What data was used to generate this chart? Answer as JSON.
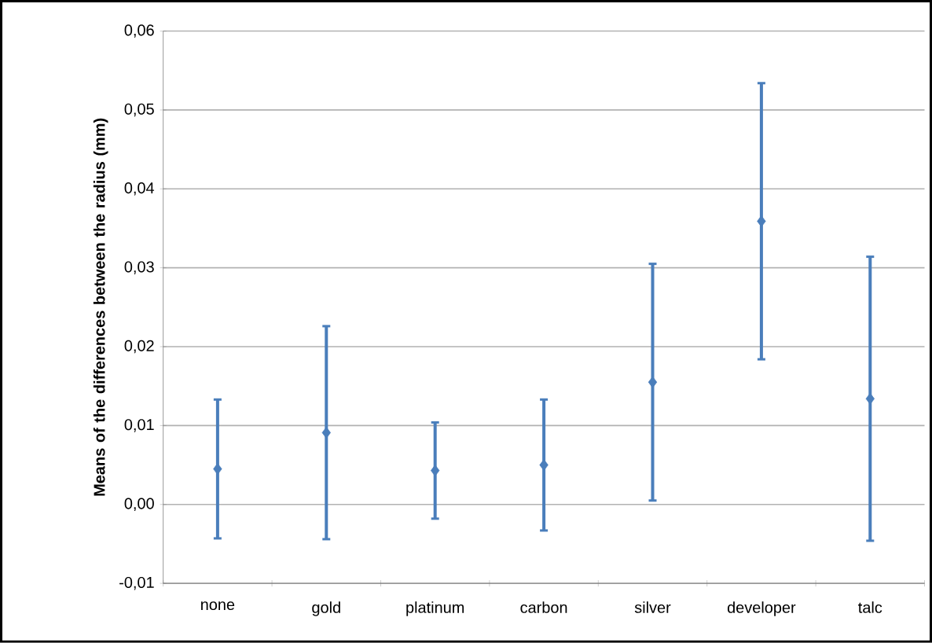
{
  "chart_data": {
    "type": "scatter",
    "ylabel": "Means of the differences between the radius (mm)",
    "categories": [
      "none",
      "gold",
      "platinum",
      "carbon",
      "silver",
      "developer",
      "talc"
    ],
    "values": [
      0.0045,
      0.0091,
      0.0043,
      0.005,
      0.0155,
      0.0359,
      0.0134
    ],
    "errors": [
      0.0088,
      0.0135,
      0.0061,
      0.0083,
      0.015,
      0.0175,
      0.018
    ],
    "color": "#4a7ebb",
    "marker": "diamond",
    "grid": "y",
    "ylim": [
      -0.01,
      0.06
    ],
    "yticks": [
      {
        "value": -0.01,
        "label": "-0,01"
      },
      {
        "value": 0.0,
        "label": "0,00"
      },
      {
        "value": 0.01,
        "label": "0,01"
      },
      {
        "value": 0.02,
        "label": "0,02"
      },
      {
        "value": 0.03,
        "label": "0,03"
      },
      {
        "value": 0.04,
        "label": "0,04"
      },
      {
        "value": 0.05,
        "label": "0,05"
      },
      {
        "value": 0.06,
        "label": "0,06"
      }
    ]
  }
}
